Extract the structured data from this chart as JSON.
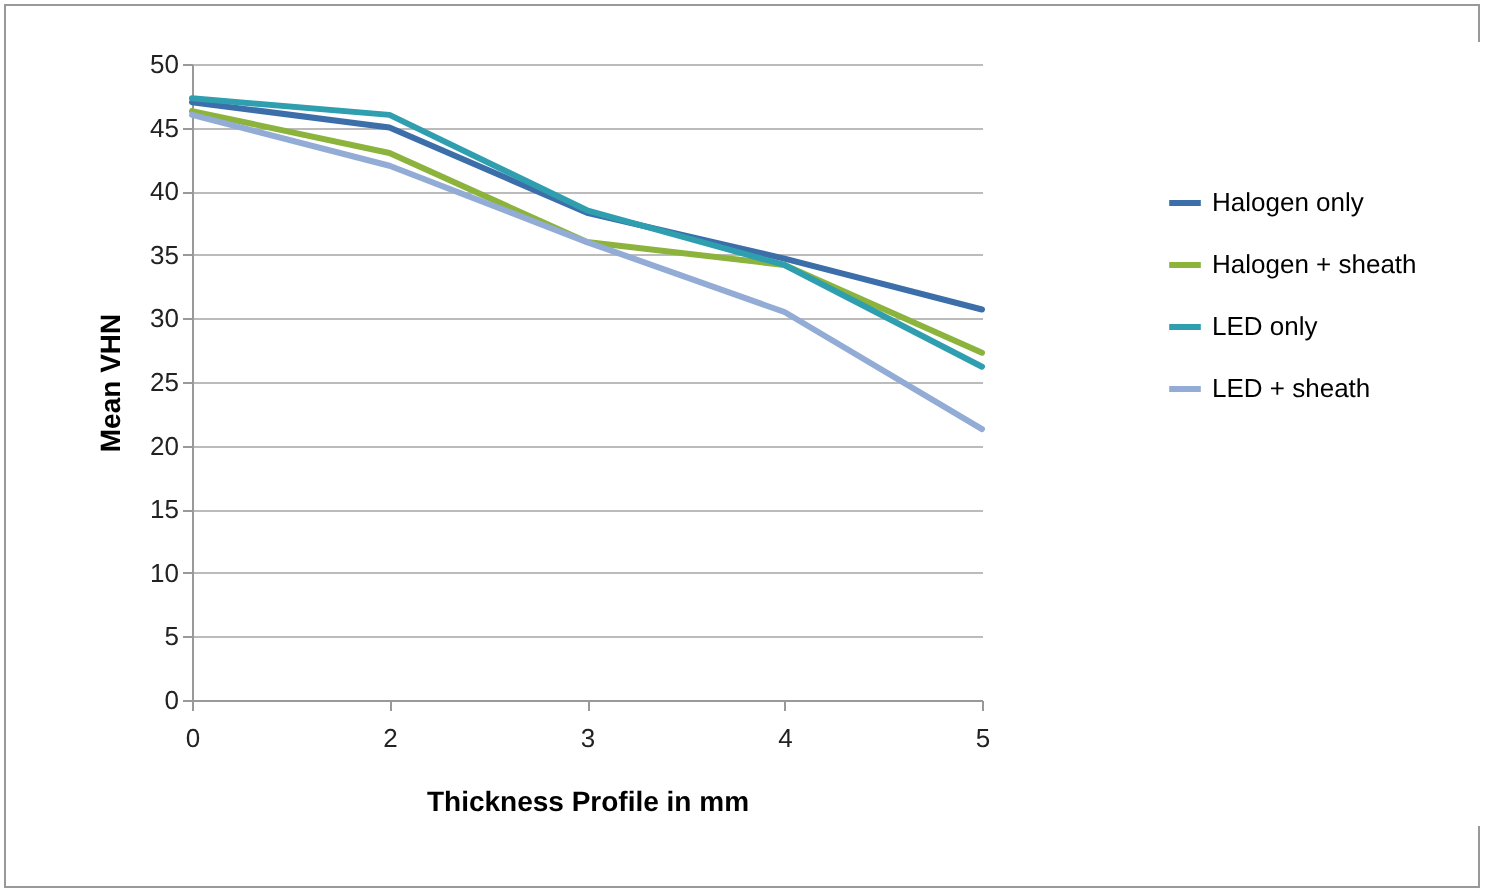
{
  "chart_data": {
    "type": "line",
    "xlabel": "Thickness Profile in mm",
    "ylabel": "Mean VHN",
    "categories": [
      "0",
      "2",
      "3",
      "4",
      "5"
    ],
    "ylim": [
      0,
      50
    ],
    "yticks": [
      0,
      5,
      10,
      15,
      20,
      25,
      30,
      35,
      40,
      45,
      50
    ],
    "grid": "y",
    "legend": "right",
    "marker": "none",
    "line_style": "solid",
    "series": [
      {
        "name": "Halogen only",
        "color": "#3c6eaa",
        "values": [
          47,
          45,
          38.3,
          34.7,
          30.7
        ]
      },
      {
        "name": "Halogen + sheath",
        "color": "#8cb43c",
        "values": [
          46.3,
          43,
          36,
          34.2,
          27.3
        ]
      },
      {
        "name": "LED only",
        "color": "#2f9fb0",
        "values": [
          47.3,
          46,
          38.5,
          34.2,
          26.2
        ]
      },
      {
        "name": "LED + sheath",
        "color": "#93acd6",
        "values": [
          46,
          42,
          36,
          30.5,
          21.3
        ]
      }
    ]
  }
}
